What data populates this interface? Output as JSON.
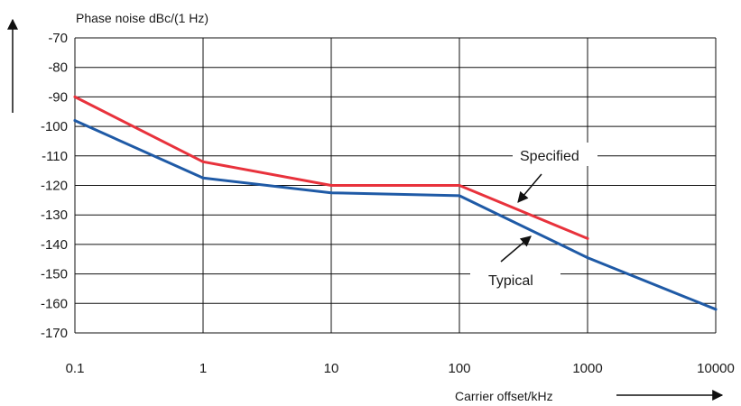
{
  "chart_data": {
    "type": "line",
    "title": "",
    "ylabel": "Phase noise dBc/(1 Hz)",
    "xlabel": "Carrier offset/kHz",
    "x_scale": "log",
    "xlim": [
      0.1,
      10000
    ],
    "ylim": [
      -170,
      -70
    ],
    "x_tick_labels": [
      "0.1",
      "1",
      "10",
      "100",
      "1000",
      "10000"
    ],
    "y_tick_labels": [
      "-70",
      "-80",
      "-90",
      "-100",
      "-110",
      "-120",
      "-130",
      "-140",
      "-150",
      "-160",
      "-170"
    ],
    "grid": true,
    "legend": "none",
    "series": [
      {
        "name": "Specified",
        "color": "#e8323c",
        "x": [
          0.1,
          1,
          10,
          100,
          1000
        ],
        "y": [
          -90,
          -112,
          -120,
          -120,
          -138
        ]
      },
      {
        "name": "Typical",
        "color": "#1f5aa6",
        "x": [
          0.1,
          1,
          10,
          100,
          1000,
          10000
        ],
        "y": [
          -98,
          -117.5,
          -122.5,
          -123.5,
          -144.5,
          -162
        ]
      }
    ],
    "annotations": [
      {
        "text": "Specified",
        "series": "Specified"
      },
      {
        "text": "Typical",
        "series": "Typical"
      }
    ]
  }
}
